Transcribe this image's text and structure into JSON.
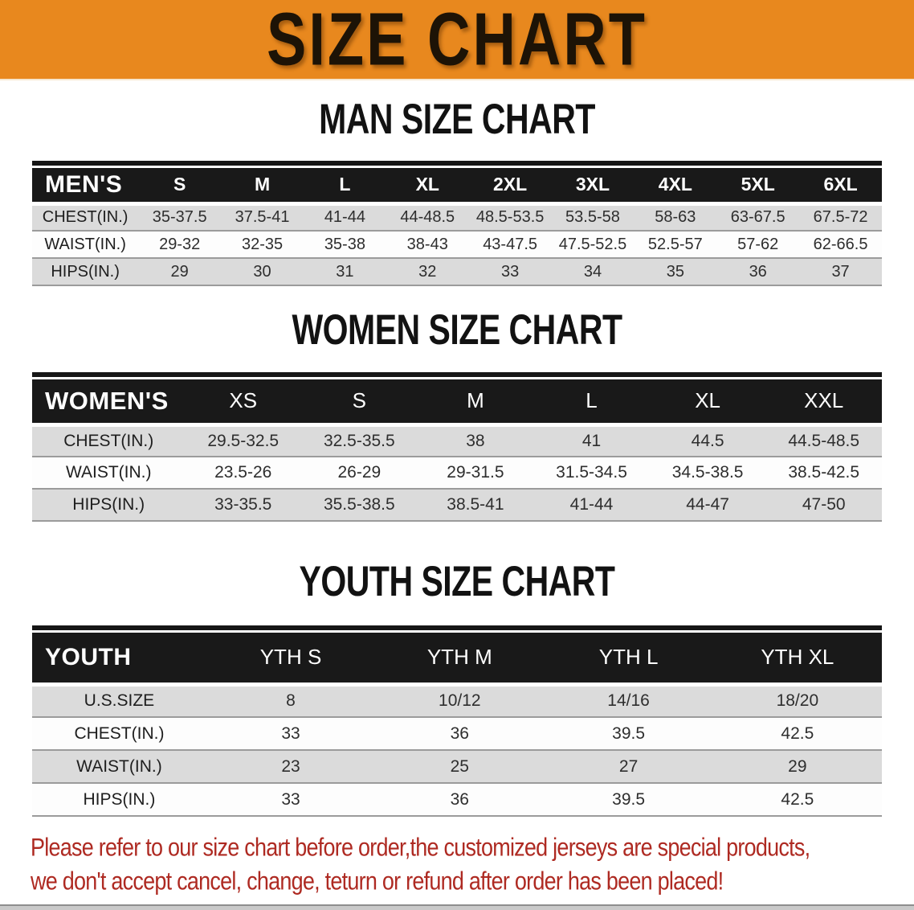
{
  "banner": {
    "title": "SIZE CHART"
  },
  "colors": {
    "banner_bg": "#E8881E",
    "table_header_bg": "#191919",
    "row_shade": "#DBDBDB",
    "row_plain": "#FDFDFD",
    "disclaimer_text": "#AE2A22"
  },
  "sections": [
    {
      "heading": "MAN SIZE CHART",
      "label": "MEN'S",
      "sizes": [
        "S",
        "M",
        "L",
        "XL",
        "2XL",
        "3XL",
        "4XL",
        "5XL",
        "6XL"
      ],
      "rows": [
        {
          "label": "CHEST(IN.)",
          "values": [
            "35-37.5",
            "37.5-41",
            "41-44",
            "44-48.5",
            "48.5-53.5",
            "53.5-58",
            "58-63",
            "63-67.5",
            "67.5-72"
          ]
        },
        {
          "label": "WAIST(IN.)",
          "values": [
            "29-32",
            "32-35",
            "35-38",
            "38-43",
            "43-47.5",
            "47.5-52.5",
            "52.5-57",
            "57-62",
            "62-66.5"
          ]
        },
        {
          "label": "HIPS(IN.)",
          "values": [
            "29",
            "30",
            "31",
            "32",
            "33",
            "34",
            "35",
            "36",
            "37"
          ]
        }
      ]
    },
    {
      "heading": "WOMEN SIZE CHART",
      "label": "WOMEN'S",
      "sizes": [
        "XS",
        "S",
        "M",
        "L",
        "XL",
        "XXL"
      ],
      "rows": [
        {
          "label": "CHEST(IN.)",
          "values": [
            "29.5-32.5",
            "32.5-35.5",
            "38",
            "41",
            "44.5",
            "44.5-48.5"
          ]
        },
        {
          "label": "WAIST(IN.)",
          "values": [
            "23.5-26",
            "26-29",
            "29-31.5",
            "31.5-34.5",
            "34.5-38.5",
            "38.5-42.5"
          ]
        },
        {
          "label": "HIPS(IN.)",
          "values": [
            "33-35.5",
            "35.5-38.5",
            "38.5-41",
            "41-44",
            "44-47",
            "47-50"
          ]
        }
      ]
    },
    {
      "heading": "YOUTH SIZE CHART",
      "label": "YOUTH",
      "sizes": [
        "YTH S",
        "YTH M",
        "YTH L",
        "YTH XL"
      ],
      "rows": [
        {
          "label": "U.S.SIZE",
          "values": [
            "8",
            "10/12",
            "14/16",
            "18/20"
          ]
        },
        {
          "label": "CHEST(IN.)",
          "values": [
            "33",
            "36",
            "39.5",
            "42.5"
          ]
        },
        {
          "label": "WAIST(IN.)",
          "values": [
            "23",
            "25",
            "27",
            "29"
          ]
        },
        {
          "label": "HIPS(IN.)",
          "values": [
            "33",
            "36",
            "39.5",
            "42.5"
          ]
        }
      ]
    }
  ],
  "disclaimer": {
    "line1": "Please refer to our size chart before order,the customized jerseys are special products,",
    "line2": "we don't accept cancel, change, teturn or refund after order has been placed!"
  }
}
